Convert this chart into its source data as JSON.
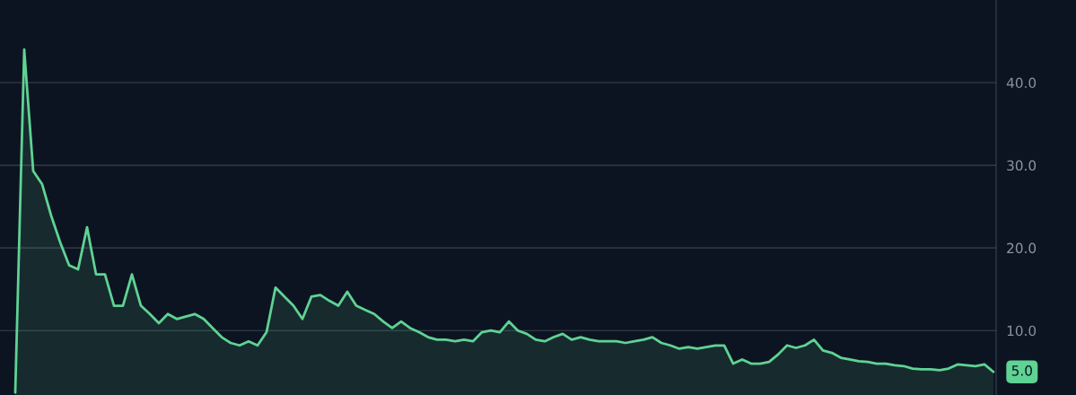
{
  "chart_data": {
    "type": "area",
    "categories": [
      null,
      null,
      null,
      null,
      null,
      null,
      null,
      null,
      null,
      null,
      null,
      null,
      null,
      null,
      null,
      null,
      null,
      null,
      null,
      null,
      null,
      null,
      null,
      null,
      null,
      null,
      null,
      null,
      null,
      null,
      null,
      null,
      null,
      null,
      null,
      null,
      null,
      null,
      null,
      null,
      null,
      null,
      null,
      null,
      null,
      null,
      null,
      null,
      null,
      null,
      null,
      null,
      null,
      null,
      null,
      null,
      null,
      null,
      null,
      null,
      null,
      null,
      null,
      null,
      null,
      null,
      null,
      null,
      null,
      null,
      null,
      null,
      null,
      null,
      null,
      null,
      null,
      null,
      null,
      null,
      null,
      null,
      null,
      null,
      null,
      null,
      null,
      null,
      null,
      null,
      null,
      null,
      null,
      null,
      null,
      null,
      null,
      null,
      null,
      null,
      null,
      null,
      null,
      null,
      null,
      null,
      null,
      null,
      null,
      null
    ],
    "series": [
      {
        "color": "#5fd393",
        "values": [
          2.5,
          44.0,
          29.3,
          27.7,
          23.9,
          20.7,
          17.9,
          17.4,
          22.5,
          16.8,
          16.8,
          13.0,
          13.0,
          16.8,
          13.0,
          12.0,
          10.9,
          12.0,
          11.4,
          11.7,
          12.0,
          11.4,
          10.3,
          9.2,
          8.5,
          8.2,
          8.7,
          8.2,
          9.8,
          15.2,
          14.1,
          13.0,
          11.4,
          14.1,
          14.3,
          13.6,
          13.0,
          14.7,
          13.0,
          12.5,
          12.0,
          11.1,
          10.3,
          11.1,
          10.3,
          9.8,
          9.2,
          8.9,
          8.9,
          8.7,
          8.9,
          8.7,
          9.8,
          10.0,
          9.8,
          11.1,
          10.0,
          9.6,
          8.9,
          8.7,
          9.2,
          9.6,
          8.9,
          9.2,
          8.9,
          8.7,
          8.7,
          8.7,
          8.5,
          8.7,
          8.9,
          9.2,
          8.5,
          8.2,
          7.8,
          8.0,
          7.8,
          8.0,
          8.2,
          8.2,
          6.0,
          6.5,
          6.0,
          6.0,
          6.2,
          7.1,
          8.2,
          7.9,
          8.2,
          8.9,
          7.6,
          7.3,
          6.7,
          6.5,
          6.3,
          6.2,
          6.0,
          6.0,
          5.8,
          5.7,
          5.4,
          5.3,
          5.3,
          5.2,
          5.4,
          5.9,
          5.8,
          5.7,
          5.9,
          5.0
        ]
      }
    ],
    "ylim": [
      2.2,
      50
    ],
    "yticks": [
      {
        "value": 10,
        "label": "10.0"
      },
      {
        "value": 20,
        "label": "20.0"
      },
      {
        "value": 30,
        "label": "30.0"
      },
      {
        "value": 40,
        "label": "40.0"
      }
    ],
    "grid": "y",
    "tick_labels": "y",
    "annotations": [
      "5.0"
    ]
  }
}
